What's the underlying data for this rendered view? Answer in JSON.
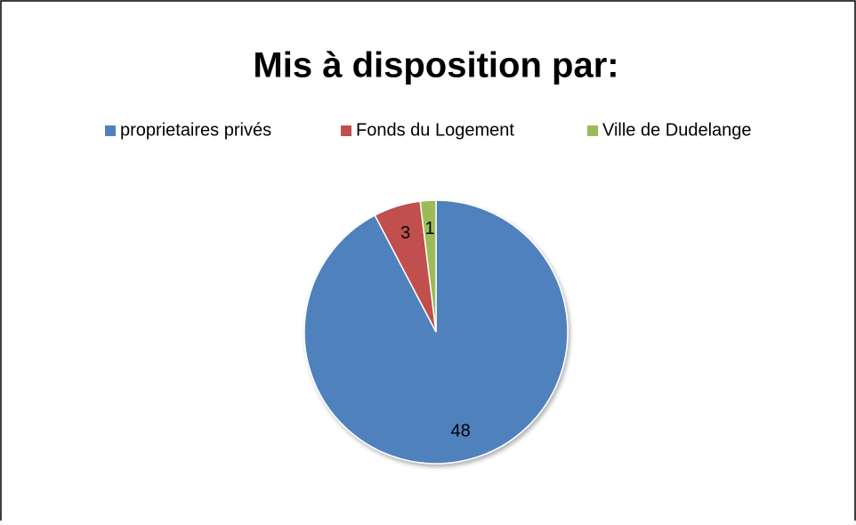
{
  "chart_data": {
    "type": "pie",
    "title": "Mis à disposition par:",
    "categories": [
      "proprietaires privés",
      "Fonds du Logement",
      "Ville de Dudelange"
    ],
    "values": [
      48,
      3,
      1
    ],
    "colors": [
      "#4f81bd",
      "#c0504d",
      "#9bbb59"
    ],
    "legend": "top"
  }
}
